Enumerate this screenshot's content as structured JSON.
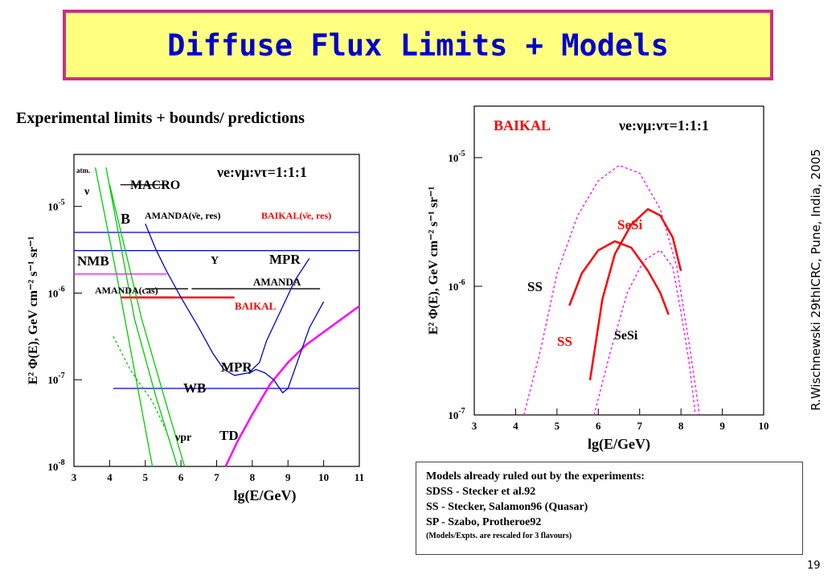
{
  "slide": {
    "title": "Diffuse Flux Limits + Models",
    "subtitle": "Experimental limits + bounds/ predictions",
    "author": "R.Wischnewski 29thICRC, Pune, India, 2005",
    "page": "19"
  },
  "notes": {
    "lines": [
      "Models already ruled out by the experiments:",
      "SDSS - Stecker et al.92",
      "SS - Stecker, Salamon96 (Quasar)",
      "SP - Szabo, Protheroe92"
    ],
    "small": "(Models/Expts. are rescaled for 3 flavours)"
  },
  "colors": {
    "title_bg": "#ffff80",
    "title_border": "#c8327f",
    "title_text": "#0000cc",
    "red": "#ff0000",
    "magenta": "#ff00ff",
    "blue": "#0000cc",
    "green": "#00cc00"
  },
  "chart_data": [
    {
      "type": "line",
      "xlabel": "lg(E/GeV)",
      "ylabel": "E² Φ(E), GeV cm⁻² s⁻¹ sr⁻¹",
      "xlim": [
        3,
        11
      ],
      "ylim": [
        -8,
        -4.4
      ],
      "ylog": true,
      "xticks": [
        "3",
        "4",
        "5",
        "6",
        "7",
        "8",
        "9",
        "10",
        "11"
      ],
      "yticks": [
        {
          "base": "10",
          "exp": "-5",
          "v": -5
        },
        {
          "base": "10",
          "exp": "-6",
          "v": -6
        },
        {
          "base": "10",
          "exp": "-7",
          "v": -7
        },
        {
          "base": "10",
          "exp": "-8",
          "v": -8
        }
      ],
      "series": [
        {
          "color": "#ff00ff",
          "points": [
            [
              7.25,
              -8
            ],
            [
              7.6,
              -7.7
            ],
            [
              8.0,
              -7.4
            ],
            [
              8.5,
              -7.05
            ],
            [
              9.0,
              -6.8
            ],
            [
              9.5,
              -6.6
            ],
            [
              10.0,
              -6.45
            ],
            [
              10.5,
              -6.3
            ],
            [
              11.0,
              -6.15
            ]
          ]
        },
        {
          "color": "#0000cc",
          "points": [
            [
              9.6,
              -5.6
            ],
            [
              9.2,
              -5.85
            ],
            [
              8.8,
              -6.2
            ],
            [
              8.4,
              -6.55
            ],
            [
              8.2,
              -6.8
            ],
            [
              7.9,
              -6.92
            ],
            [
              7.5,
              -6.95
            ],
            [
              7.2,
              -6.88
            ],
            [
              6.9,
              -6.7
            ],
            [
              6.5,
              -6.4
            ],
            [
              6.0,
              -6.05
            ],
            [
              5.6,
              -5.75
            ],
            [
              5.3,
              -5.5
            ],
            [
              5.1,
              -5.3
            ],
            [
              5.0,
              -5.2
            ]
          ]
        },
        {
          "color": "#0000cc",
          "points": [
            [
              10.0,
              -6.1
            ],
            [
              9.6,
              -6.4
            ],
            [
              9.3,
              -6.75
            ],
            [
              9.0,
              -7.1
            ],
            [
              8.85,
              -7.15
            ],
            [
              8.6,
              -7.0
            ],
            [
              8.35,
              -6.92
            ],
            [
              8.1,
              -6.88
            ],
            [
              7.9,
              -6.93
            ]
          ]
        },
        {
          "color": "#00cc00",
          "points": [
            [
              3.6,
              -4.55
            ],
            [
              4.2,
              -5.8
            ],
            [
              4.7,
              -6.9
            ],
            [
              5.2,
              -8.0
            ]
          ]
        },
        {
          "color": "#00cc00",
          "points": [
            [
              3.9,
              -4.55
            ],
            [
              4.7,
              -6.3
            ],
            [
              5.3,
              -7.2
            ],
            [
              5.9,
              -8.0
            ]
          ]
        },
        {
          "color": "#00cc00",
          "points": [
            [
              4.0,
              -4.75
            ],
            [
              4.9,
              -6.3
            ],
            [
              5.6,
              -7.3
            ],
            [
              6.1,
              -8.0
            ]
          ]
        },
        {
          "color": "#00cc00",
          "dash": true,
          "points": [
            [
              4.1,
              -6.5
            ],
            [
              4.6,
              -6.9
            ],
            [
              5.2,
              -7.25
            ],
            [
              5.6,
              -7.6
            ]
          ]
        }
      ],
      "limits": [
        {
          "name": "MACRO",
          "color": "#000000",
          "x": [
            4.3,
            5.6
          ],
          "y": -4.75
        },
        {
          "name": "B",
          "color": "#0000cc",
          "x": [
            3.0,
            11.0
          ],
          "y": -5.3
        },
        {
          "name": "MPR",
          "color": "#0000cc",
          "x": [
            3.0,
            11.0
          ],
          "y": -5.51
        },
        {
          "name": "NMB",
          "color": "#ff00ff",
          "x": [
            3.0,
            5.6
          ],
          "y": -5.78
        },
        {
          "name": "AMANDA(cas)",
          "color": "#000000",
          "x": [
            5.0,
            6.2
          ],
          "y": -5.95
        },
        {
          "name": "AMANDA",
          "color": "#000000",
          "x": [
            6.3,
            9.9
          ],
          "y": -5.95
        },
        {
          "name": "BAIKAL",
          "color": "#ff0000",
          "x": [
            4.7,
            7.5
          ],
          "y": -6.05
        },
        {
          "name": "AMANDA(cas) red",
          "color": "#ff0000",
          "x": [
            4.3,
            5.8
          ],
          "y": -6.05
        },
        {
          "name": "WB",
          "color": "#0000cc",
          "x": [
            4.1,
            11.0
          ],
          "y": -7.1
        }
      ],
      "labels": {
        "macro": "MACRO",
        "b": "B",
        "amanda_res": "AMANDA(ν̄e, res)",
        "baikal_res": "BAIKAL(ν̄e, res)",
        "nmb": "NMB",
        "mpr": "MPR",
        "amanda_cas": "AMANDA(cas)",
        "amanda": "AMANDA",
        "baikal": "BAIKAL",
        "wb": "WB",
        "td": "TD",
        "npr": "νpr",
        "atm": "atm.",
        "nu": "ν",
        "y": "Y",
        "flavour": "νe:νμ:ντ=1:1:1"
      }
    },
    {
      "type": "line",
      "xlabel": "lg(E/GeV)",
      "ylabel": "E² Φ(E), GeV cm⁻² s⁻¹ sr⁻¹",
      "xlim": [
        3,
        10
      ],
      "ylim": [
        -7,
        -4.6
      ],
      "ylog": true,
      "xticks": [
        "3",
        "4",
        "5",
        "6",
        "7",
        "8",
        "9",
        "10"
      ],
      "yticks": [
        {
          "base": "10",
          "exp": "-5",
          "v": -5
        },
        {
          "base": "10",
          "exp": "-6",
          "v": -6
        },
        {
          "base": "10",
          "exp": "-7",
          "v": -7
        }
      ],
      "series": [
        {
          "name": "SS",
          "color": "#ff00ff",
          "dash": true,
          "points": [
            [
              4.2,
              -7.0
            ],
            [
              4.6,
              -6.5
            ],
            [
              5.0,
              -5.9
            ],
            [
              5.5,
              -5.45
            ],
            [
              6.0,
              -5.18
            ],
            [
              6.5,
              -5.06
            ],
            [
              7.0,
              -5.12
            ],
            [
              7.5,
              -5.4
            ],
            [
              7.9,
              -5.85
            ],
            [
              8.2,
              -6.45
            ],
            [
              8.45,
              -7.0
            ]
          ]
        },
        {
          "name": "SeSi",
          "color": "#ff00ff",
          "dash": true,
          "points": [
            [
              5.9,
              -7.0
            ],
            [
              6.3,
              -6.5
            ],
            [
              6.7,
              -6.05
            ],
            [
              7.1,
              -5.8
            ],
            [
              7.5,
              -5.72
            ],
            [
              7.8,
              -5.85
            ],
            [
              8.0,
              -6.2
            ],
            [
              8.2,
              -6.6
            ],
            [
              8.35,
              -7.0
            ]
          ]
        },
        {
          "name": "SS",
          "color": "#ff0000",
          "points": [
            [
              5.3,
              -6.15
            ],
            [
              5.6,
              -5.9
            ],
            [
              6.0,
              -5.72
            ],
            [
              6.4,
              -5.65
            ],
            [
              6.8,
              -5.7
            ],
            [
              7.2,
              -5.88
            ],
            [
              7.5,
              -6.05
            ],
            [
              7.7,
              -6.22
            ]
          ]
        },
        {
          "name": "SeSi",
          "color": "#ff0000",
          "points": [
            [
              5.8,
              -6.73
            ],
            [
              6.1,
              -6.1
            ],
            [
              6.4,
              -5.75
            ],
            [
              6.8,
              -5.52
            ],
            [
              7.2,
              -5.4
            ],
            [
              7.5,
              -5.45
            ],
            [
              7.8,
              -5.62
            ],
            [
              8.0,
              -5.88
            ]
          ]
        }
      ],
      "labels": {
        "baikal": "BAIKAL",
        "sesi_red": "SeSi",
        "ss_mag": "SS",
        "ss_red": "SS",
        "sesi_mag": "SeSi",
        "flavour": "νe:νμ:ντ=1:1:1"
      }
    }
  ]
}
